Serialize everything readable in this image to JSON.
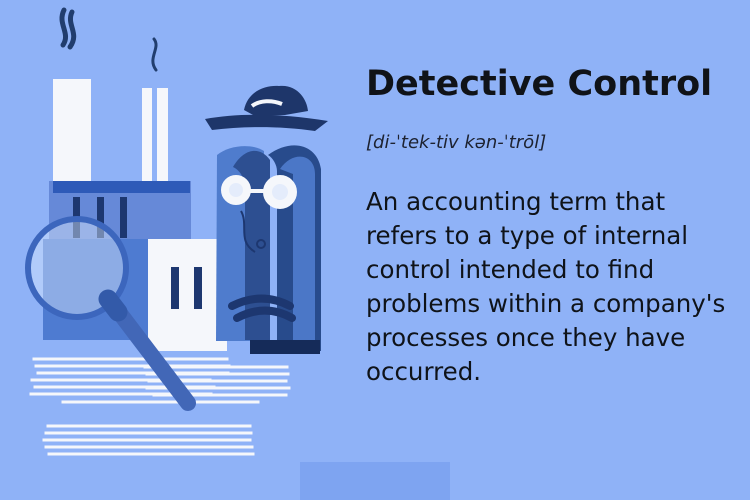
{
  "definition_card": {
    "title": "Detective Control",
    "pronunciation": "[di-ˈtek-tiv kən-ˈtrōl]",
    "definition_lines": [
      "An accounting term that",
      "refers to a type of internal",
      "control intended to find",
      "problems within a company's",
      "processes once they have",
      "occurred."
    ]
  },
  "colors": {
    "background": "#8fb2f7",
    "ink": "#101318",
    "illustration_navy": "#24407a",
    "illustration_blue": "#4d78ca",
    "illustration_white": "#f5f7fb"
  },
  "illustration": {
    "icon": "factory-detective-magnifying-glass-icon"
  }
}
